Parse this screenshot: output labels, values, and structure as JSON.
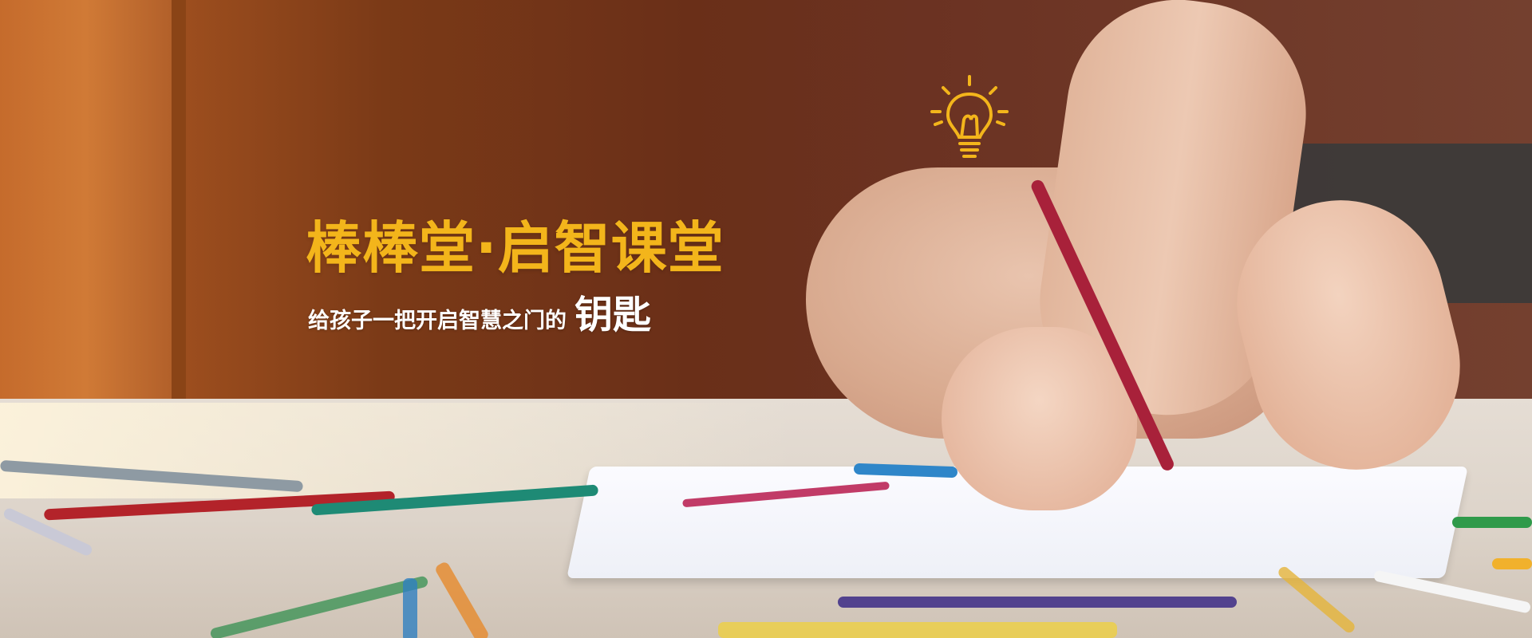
{
  "banner": {
    "title": "棒棒堂·启智课堂",
    "subtitle": "给孩子一把开启智慧之门的",
    "subtitle_highlight": "钥匙"
  },
  "colors": {
    "title": "#f3b51b",
    "subtitle": "#ffffff",
    "bulb": "#f3b51b"
  },
  "icons": {
    "bulb": "lightbulb-icon"
  }
}
